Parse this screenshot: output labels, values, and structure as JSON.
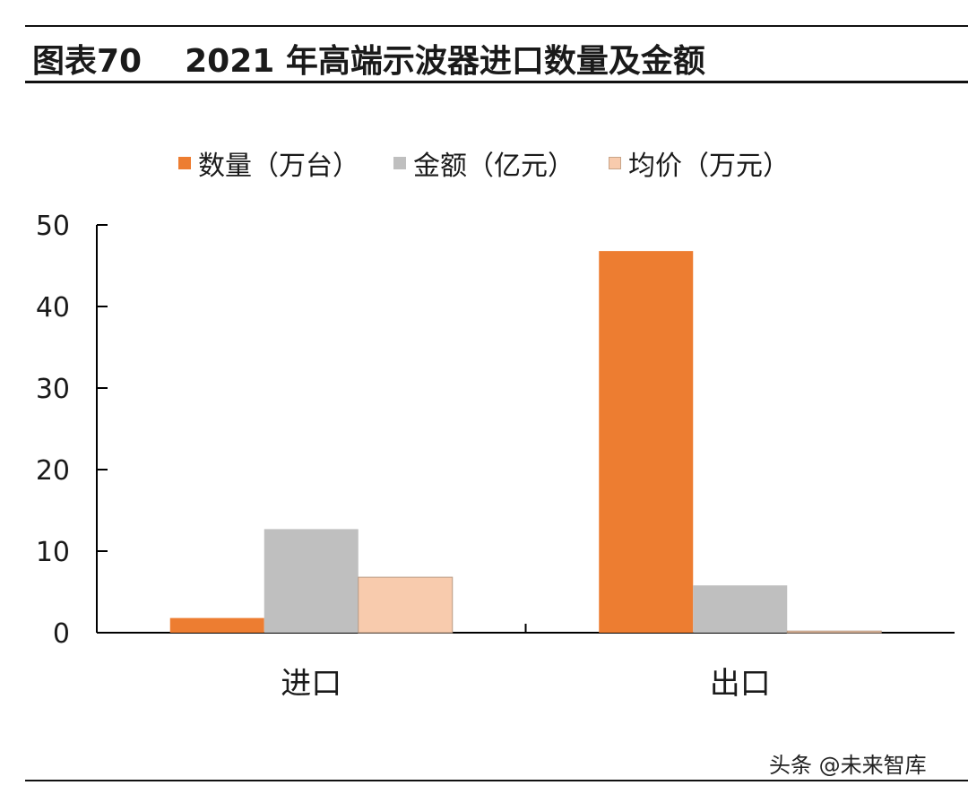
{
  "header": {
    "figure_label": "图表70",
    "title": "2021 年高端示波器进口数量及金额"
  },
  "watermark": "头条 @未来智库",
  "chart_data": {
    "type": "bar",
    "title": "2021 年高端示波器进口数量及金额",
    "categories": [
      "进口",
      "出口"
    ],
    "series": [
      {
        "name": "数量（万台）",
        "color": "#ED7D31",
        "values": [
          1.8,
          46.8
        ]
      },
      {
        "name": "金额（亿元）",
        "color": "#BFBFBF",
        "values": [
          12.7,
          5.8
        ]
      },
      {
        "name": "均价（万元）",
        "color": "#F8CBAD",
        "values": [
          6.8,
          0.2
        ]
      }
    ],
    "yticks": [
      0,
      10,
      20,
      30,
      40,
      50
    ],
    "ylim": [
      0,
      50
    ],
    "xlabel": "",
    "ylabel": "",
    "grid": false,
    "legend_position": "top-center"
  }
}
